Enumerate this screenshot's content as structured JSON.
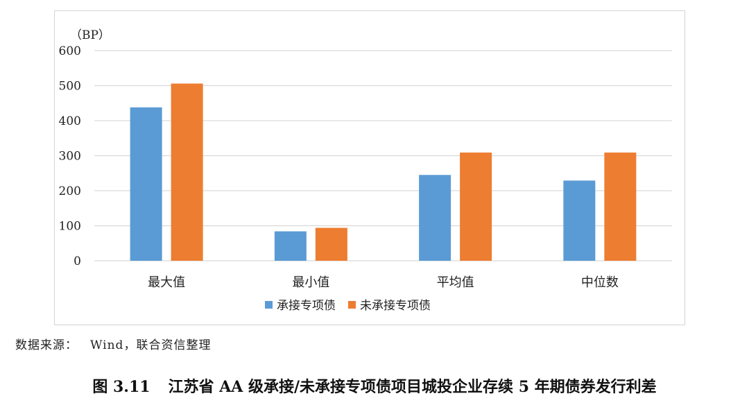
{
  "chart_data": {
    "type": "bar",
    "unit_label": "（BP）",
    "categories": [
      "最大值",
      "最小值",
      "平均值",
      "中位数"
    ],
    "series": [
      {
        "name": "承接专项债",
        "color": "#5b9bd5",
        "values": [
          438,
          84,
          245,
          229
        ]
      },
      {
        "name": "未承接专项债",
        "color": "#ed7d31",
        "values": [
          506,
          94,
          309,
          309
        ]
      }
    ],
    "yticks": [
      0,
      100,
      200,
      300,
      400,
      500,
      600
    ],
    "ylim": [
      0,
      600
    ],
    "grid": true,
    "gridline_color": "#d9d9d9",
    "legend_position": "bottom"
  },
  "source": {
    "label": "数据来源：",
    "value": "Wind，联合资信整理"
  },
  "caption": {
    "number": "图 3.11",
    "title": "江苏省 AA 级承接/未承接专项债项目城投企业存续 5 年期债券发行利差"
  }
}
